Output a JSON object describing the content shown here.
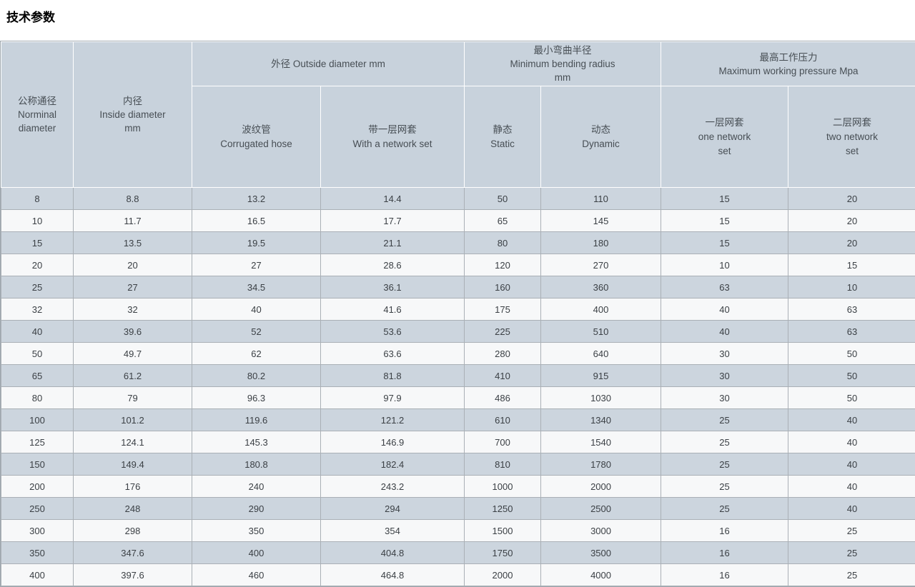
{
  "page": {
    "title": "技术参数"
  },
  "theme": {
    "header_bg": "#c8d2dc",
    "row_shaded_bg": "#ccd5de",
    "row_light_bg": "#f7f8f9"
  },
  "table": {
    "headers": {
      "nominal_diameter": "公称通径\nNorminal\ndiameter",
      "inside_diameter": "内径\nInside diameter\nmm",
      "outside_diameter_group": "外径 Outside diameter mm",
      "min_bending_group": "最小弯曲半径\nMinimum bending radius\nmm",
      "max_pressure_group": "最高工作压力\nMaximum working pressure Mpa",
      "corrugated_hose": "波纹管\nCorrugated hose",
      "with_network_set": "带一层网套\nWith a network set",
      "static": "静态\nStatic",
      "dynamic": "动态\nDynamic",
      "one_network_set": "一层网套\none network\nset",
      "two_network_set": "二层网套\ntwo network\nset"
    },
    "rows": [
      [
        "8",
        "8.8",
        "13.2",
        "14.4",
        "50",
        "110",
        "15",
        "20"
      ],
      [
        "10",
        "11.7",
        "16.5",
        "17.7",
        "65",
        "145",
        "15",
        "20"
      ],
      [
        "15",
        "13.5",
        "19.5",
        "21.1",
        "80",
        "180",
        "15",
        "20"
      ],
      [
        "20",
        "20",
        "27",
        "28.6",
        "120",
        "270",
        "10",
        "15"
      ],
      [
        "25",
        "27",
        "34.5",
        "36.1",
        "160",
        "360",
        "63",
        "10"
      ],
      [
        "32",
        "32",
        "40",
        "41.6",
        "175",
        "400",
        "40",
        "63"
      ],
      [
        "40",
        "39.6",
        "52",
        "53.6",
        "225",
        "510",
        "40",
        "63"
      ],
      [
        "50",
        "49.7",
        "62",
        "63.6",
        "280",
        "640",
        "30",
        "50"
      ],
      [
        "65",
        "61.2",
        "80.2",
        "81.8",
        "410",
        "915",
        "30",
        "50"
      ],
      [
        "80",
        "79",
        "96.3",
        "97.9",
        "486",
        "1030",
        "30",
        "50"
      ],
      [
        "100",
        "101.2",
        "119.6",
        "121.2",
        "610",
        "1340",
        "25",
        "40"
      ],
      [
        "125",
        "124.1",
        "145.3",
        "146.9",
        "700",
        "1540",
        "25",
        "40"
      ],
      [
        "150",
        "149.4",
        "180.8",
        "182.4",
        "810",
        "1780",
        "25",
        "40"
      ],
      [
        "200",
        "176",
        "240",
        "243.2",
        "1000",
        "2000",
        "25",
        "40"
      ],
      [
        "250",
        "248",
        "290",
        "294",
        "1250",
        "2500",
        "25",
        "40"
      ],
      [
        "300",
        "298",
        "350",
        "354",
        "1500",
        "3000",
        "16",
        "25"
      ],
      [
        "350",
        "347.6",
        "400",
        "404.8",
        "1750",
        "3500",
        "16",
        "25"
      ],
      [
        "400",
        "397.6",
        "460",
        "464.8",
        "2000",
        "4000",
        "16",
        "25"
      ]
    ]
  }
}
